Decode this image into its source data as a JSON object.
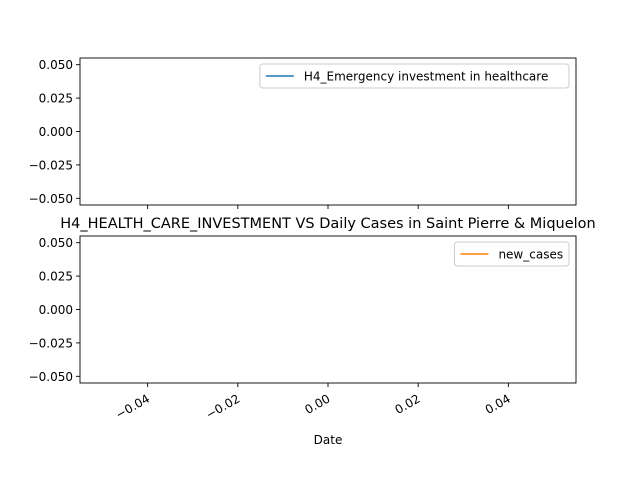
{
  "chart_data": [
    {
      "type": "line",
      "title": "",
      "xlabel": "",
      "ylabel": "",
      "xlim": [
        -0.055,
        0.055
      ],
      "ylim": [
        -0.055,
        0.055
      ],
      "y_ticks": [
        0.05,
        0.025,
        0.0,
        -0.025,
        -0.05
      ],
      "y_tick_labels": [
        "0.050",
        "0.025",
        "0.000",
        "−0.025",
        "−0.050"
      ],
      "x_ticks": [
        -0.04,
        -0.02,
        0.0,
        0.02,
        0.04
      ],
      "x_tick_labels_visible": false,
      "grid": false,
      "legend_position": "upper right",
      "series": [
        {
          "name": "H4_Emergency investment in healthcare",
          "color": "#1f77b4",
          "x": [],
          "y": []
        }
      ]
    },
    {
      "type": "line",
      "title": "H4_HEALTH_CARE_INVESTMENT VS Daily Cases in Saint Pierre & Miquelon",
      "xlabel": "Date",
      "ylabel": "",
      "xlim": [
        -0.055,
        0.055
      ],
      "ylim": [
        -0.055,
        0.055
      ],
      "y_ticks": [
        0.05,
        0.025,
        0.0,
        -0.025,
        -0.05
      ],
      "y_tick_labels": [
        "0.050",
        "0.025",
        "0.000",
        "−0.025",
        "−0.050"
      ],
      "x_ticks": [
        -0.04,
        -0.02,
        0.0,
        0.02,
        0.04
      ],
      "x_tick_labels": [
        "−0.04",
        "−0.02",
        "0.00",
        "0.02",
        "0.04"
      ],
      "x_tick_label_rotation": "30 degrees",
      "grid": false,
      "legend_position": "upper right",
      "series": [
        {
          "name": "new_cases",
          "color": "#ff7f0e",
          "x": [],
          "y": []
        }
      ]
    }
  ]
}
